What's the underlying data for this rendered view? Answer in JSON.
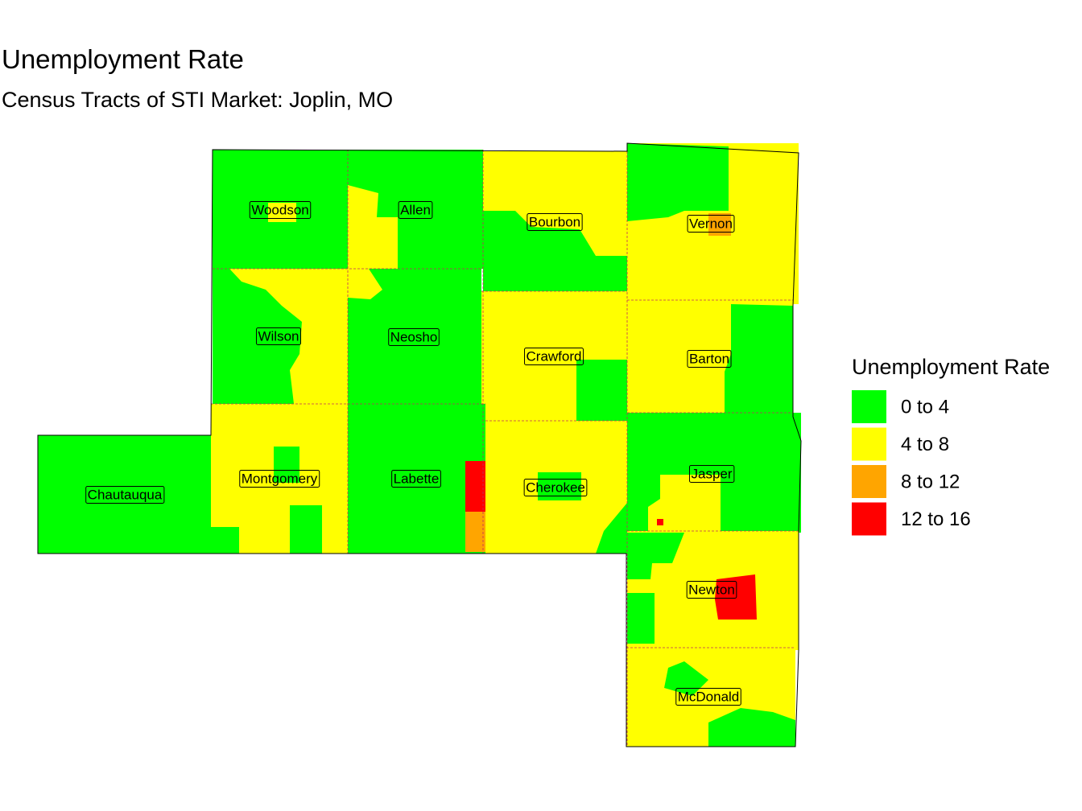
{
  "title": "Unemployment Rate",
  "subtitle": "Census Tracts of STI Market: Joplin, MO",
  "legend": {
    "title": "Unemployment Rate",
    "items": [
      {
        "label": "0 to 4",
        "color": "#00ff00"
      },
      {
        "label": "4 to 8",
        "color": "#ffff00"
      },
      {
        "label": "8 to 12",
        "color": "#ffa500"
      },
      {
        "label": "12 to 16",
        "color": "#ff0000"
      }
    ]
  },
  "counties": [
    {
      "label": "Woodson"
    },
    {
      "label": "Allen"
    },
    {
      "label": "Bourbon"
    },
    {
      "label": "Vernon"
    },
    {
      "label": "Wilson"
    },
    {
      "label": "Neosho"
    },
    {
      "label": "Crawford"
    },
    {
      "label": "Barton"
    },
    {
      "label": "Chautauqua"
    },
    {
      "label": "Montgomery"
    },
    {
      "label": "Labette"
    },
    {
      "label": "Cherokee"
    },
    {
      "label": "Jasper"
    },
    {
      "label": "Newton"
    },
    {
      "label": "McDonald"
    }
  ]
}
